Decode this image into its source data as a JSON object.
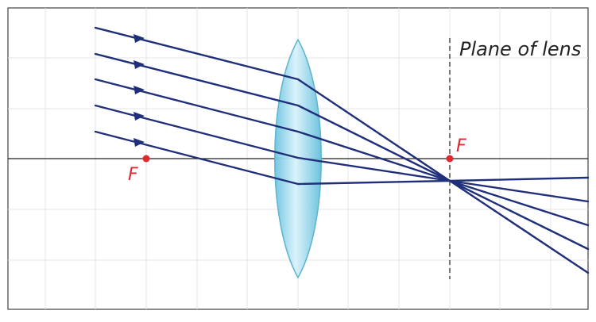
{
  "diagram": {
    "labels": {
      "plane_label": "Plane of lens",
      "focal_left": "F",
      "focal_right": "F"
    },
    "colors": {
      "ray": "#1f2f7a",
      "focal_point": "#e0282f",
      "focal_label": "#e0282f",
      "axis": "#222222",
      "grid": "#e5e5e5",
      "frame": "#666666",
      "lens_fill": "#9bd7ea",
      "lens_stroke": "#5fb4cf",
      "dashed_plane": "#555555"
    },
    "rays": {
      "count": 5,
      "direction_arrows": true
    }
  }
}
